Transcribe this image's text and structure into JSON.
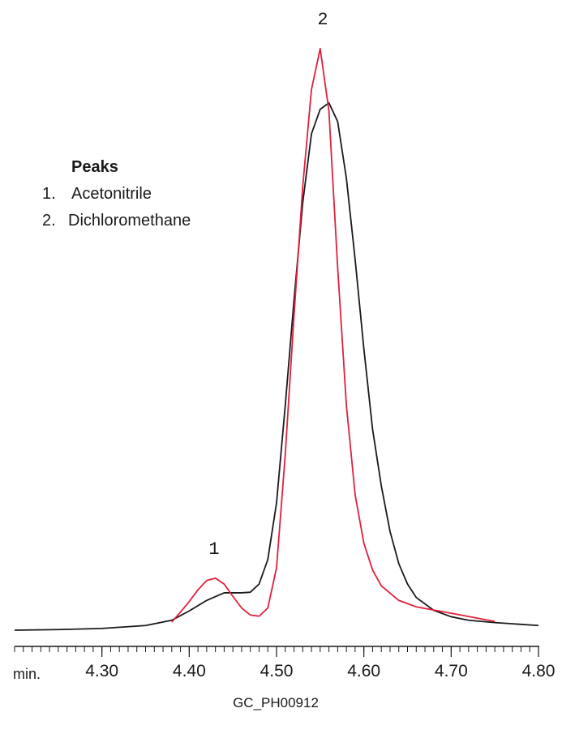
{
  "chart_data": {
    "type": "line",
    "x_label": "min.",
    "caption": "GC_PH00912",
    "legend_title": "Peaks",
    "peaks": [
      {
        "number": "1.",
        "name": "Acetonitrile"
      },
      {
        "number": "2.",
        "name": "Dichloromethane"
      }
    ],
    "peak_labels": [
      "1",
      "2"
    ],
    "xlim": [
      4.2,
      4.8
    ],
    "ylim": [
      0,
      100
    ],
    "xticks": [
      {
        "value": 4.3,
        "label": "4.30"
      },
      {
        "value": 4.4,
        "label": "4.40"
      },
      {
        "value": 4.5,
        "label": "4.50"
      },
      {
        "value": 4.6,
        "label": "4.60"
      },
      {
        "value": 4.7,
        "label": "4.70"
      },
      {
        "value": 4.8,
        "label": "4.80"
      }
    ],
    "xminorticks": [
      4.2,
      4.21,
      4.22,
      4.23,
      4.24,
      4.25,
      4.26,
      4.27,
      4.28,
      4.29,
      4.3,
      4.31,
      4.32,
      4.33,
      4.34,
      4.35,
      4.36,
      4.37,
      4.38,
      4.39,
      4.4,
      4.41,
      4.42,
      4.43,
      4.44,
      4.45,
      4.46,
      4.47,
      4.48,
      4.49,
      4.5,
      4.51,
      4.52,
      4.53,
      4.54,
      4.55,
      4.56,
      4.57,
      4.58,
      4.59,
      4.6,
      4.61,
      4.62,
      4.63,
      4.64,
      4.65,
      4.66,
      4.67,
      4.68,
      4.69,
      4.7,
      4.71,
      4.72,
      4.73,
      4.74,
      4.75,
      4.76,
      4.77,
      4.78,
      4.79,
      4.8
    ],
    "series": [
      {
        "color": "#1a1a1a",
        "x": [
          4.2,
          4.25,
          4.3,
          4.35,
          4.38,
          4.4,
          4.42,
          4.44,
          4.46,
          4.47,
          4.48,
          4.49,
          4.5,
          4.51,
          4.52,
          4.53,
          4.54,
          4.55,
          4.56,
          4.57,
          4.58,
          4.59,
          4.6,
          4.61,
          4.62,
          4.63,
          4.64,
          4.65,
          4.66,
          4.68,
          4.7,
          4.72,
          4.75,
          4.8
        ],
        "values": [
          0,
          0.1,
          0.3,
          0.8,
          1.7,
          3.3,
          5.1,
          6.4,
          6.4,
          6.5,
          7.9,
          12.1,
          21.8,
          38.5,
          56.5,
          73.2,
          85.0,
          89.2,
          90.3,
          87.1,
          77.4,
          63.5,
          48.2,
          34.4,
          24.7,
          16.9,
          11.4,
          7.9,
          5.6,
          3.4,
          2.3,
          1.7,
          1.3,
          0.8
        ]
      },
      {
        "color": "#e0203c",
        "x": [
          4.38,
          4.39,
          4.4,
          4.41,
          4.42,
          4.43,
          4.44,
          4.45,
          4.46,
          4.47,
          4.48,
          4.49,
          4.5,
          4.51,
          4.52,
          4.53,
          4.54,
          4.55,
          4.56,
          4.57,
          4.58,
          4.59,
          4.6,
          4.61,
          4.62,
          4.64,
          4.66,
          4.7,
          4.75
        ],
        "values": [
          1.4,
          3.1,
          4.9,
          6.9,
          8.5,
          8.9,
          7.9,
          5.8,
          3.8,
          2.6,
          2.4,
          3.8,
          10.7,
          30.1,
          53.8,
          76.0,
          92.6,
          99.6,
          88.9,
          62.1,
          38.5,
          23.2,
          14.9,
          10.3,
          7.6,
          5.1,
          4.0,
          2.9,
          1.5
        ]
      }
    ]
  }
}
